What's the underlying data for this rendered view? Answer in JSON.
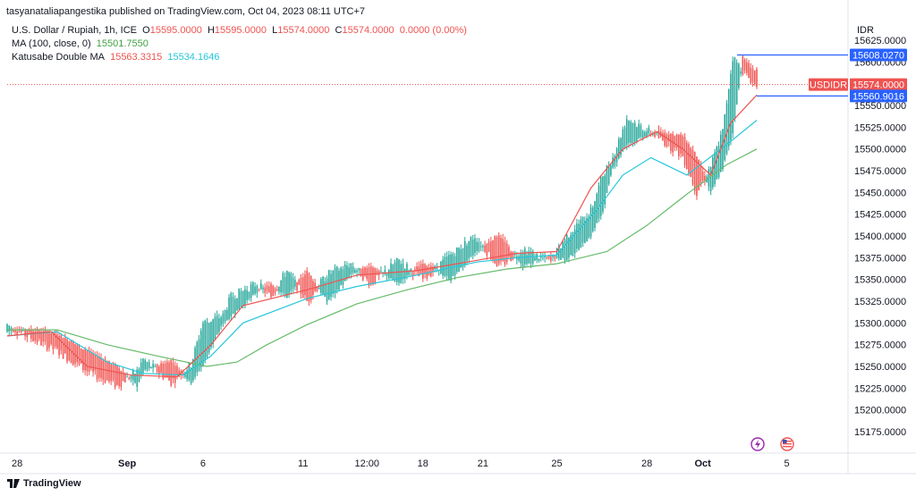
{
  "header": {
    "publisher": "tasyanataliapangestika published on TradingView.com, Oct 04, 2023 08:11 UTC+7"
  },
  "legend": {
    "symbol": "U.S. Dollar / Rupiah, 1h, ICE",
    "ohlc": [
      {
        "label": "O",
        "value": "15595.0000"
      },
      {
        "label": "H",
        "value": "15595.0000"
      },
      {
        "label": "L",
        "value": "15574.0000"
      },
      {
        "label": "C",
        "value": "15574.0000"
      }
    ],
    "change": "0.0000 (0.00%)",
    "ma_label": "MA (100, close, 0)",
    "ma_value": "15501.7550",
    "dma_label": "Katusabe Double MA",
    "dma_value1": "15563.3315",
    "dma_value2": "15534.1646"
  },
  "currency": "IDR",
  "branding": "TradingView",
  "price_labels": {
    "top": "15608.0270",
    "symbol": "USDIDR",
    "current": "15574.0000",
    "bottom": "15560.9016"
  },
  "colors": {
    "up": "#26a69a",
    "down": "#ef5350",
    "ma": "#66bb6a",
    "dma_red": "#ef5350",
    "dma_teal": "#26c6da",
    "blue_label": "#2962ff"
  },
  "chart_data": {
    "type": "candlestick",
    "ylim": [
      15150,
      15630
    ],
    "y_ticks": [
      15625,
      15600,
      15575,
      15550,
      15525,
      15500,
      15475,
      15450,
      15425,
      15400,
      15375,
      15350,
      15325,
      15300,
      15275,
      15250,
      15225,
      15200,
      15175
    ],
    "x_ticks": [
      "28",
      "Sep",
      "6",
      "11",
      "12:00",
      "18",
      "21",
      "25",
      "28",
      "Oct",
      "5"
    ],
    "x_ticks_idx": [
      5,
      60,
      98,
      148,
      180,
      208,
      238,
      275,
      320,
      348,
      390
    ],
    "series": [
      {
        "name": "MA (100, close, 0)",
        "values": [
          [
            0,
            15292
          ],
          [
            25,
            15292
          ],
          [
            50,
            15275
          ],
          [
            75,
            15262
          ],
          [
            100,
            15250
          ],
          [
            115,
            15255
          ],
          [
            130,
            15275
          ],
          [
            150,
            15298
          ],
          [
            175,
            15322
          ],
          [
            200,
            15338
          ],
          [
            225,
            15352
          ],
          [
            250,
            15362
          ],
          [
            275,
            15368
          ],
          [
            300,
            15382
          ],
          [
            320,
            15412
          ],
          [
            340,
            15448
          ],
          [
            360,
            15482
          ],
          [
            375,
            15500
          ]
        ]
      },
      {
        "name": "Katusabe Double MA",
        "values": [
          [
            0,
            15285
          ],
          [
            25,
            15290
          ],
          [
            50,
            15255
          ],
          [
            68,
            15242
          ],
          [
            88,
            15240
          ],
          [
            102,
            15262
          ],
          [
            118,
            15300
          ],
          [
            150,
            15328
          ],
          [
            175,
            15342
          ],
          [
            205,
            15355
          ],
          [
            235,
            15370
          ],
          [
            255,
            15375
          ],
          [
            275,
            15378
          ],
          [
            295,
            15430
          ],
          [
            308,
            15470
          ],
          [
            322,
            15490
          ],
          [
            340,
            15470
          ],
          [
            360,
            15505
          ],
          [
            375,
            15533
          ]
        ]
      },
      {
        "name": "Katusabe Double MA (red)",
        "values": [
          [
            0,
            15285
          ],
          [
            22,
            15290
          ],
          [
            40,
            15250
          ],
          [
            62,
            15240
          ],
          [
            85,
            15238
          ],
          [
            102,
            15275
          ],
          [
            118,
            15320
          ],
          [
            150,
            15338
          ],
          [
            175,
            15355
          ],
          [
            205,
            15360
          ],
          [
            235,
            15372
          ],
          [
            255,
            15380
          ],
          [
            275,
            15382
          ],
          [
            292,
            15455
          ],
          [
            308,
            15500
          ],
          [
            325,
            15520
          ],
          [
            338,
            15500
          ],
          [
            352,
            15470
          ],
          [
            362,
            15530
          ],
          [
            375,
            15562
          ]
        ]
      }
    ],
    "candles_control": [
      [
        0,
        15290,
        15298
      ],
      [
        10,
        15293,
        15285
      ],
      [
        25,
        15288,
        15268
      ],
      [
        40,
        15268,
        15245
      ],
      [
        55,
        15250,
        15228
      ],
      [
        65,
        15228,
        15244
      ],
      [
        68,
        15244,
        15258
      ],
      [
        82,
        15257,
        15232
      ],
      [
        92,
        15232,
        15252
      ],
      [
        98,
        15252,
        15300
      ],
      [
        108,
        15300,
        15308
      ],
      [
        112,
        15308,
        15330
      ],
      [
        125,
        15335,
        15345
      ],
      [
        132,
        15345,
        15330
      ],
      [
        140,
        15330,
        15360
      ],
      [
        150,
        15360,
        15325
      ],
      [
        160,
        15325,
        15355
      ],
      [
        172,
        15355,
        15368
      ],
      [
        182,
        15366,
        15345
      ],
      [
        196,
        15345,
        15372
      ],
      [
        208,
        15370,
        15350
      ],
      [
        222,
        15350,
        15378
      ],
      [
        234,
        15380,
        15400
      ],
      [
        246,
        15402,
        15365
      ],
      [
        258,
        15365,
        15385
      ],
      [
        272,
        15378,
        15370
      ],
      [
        280,
        15372,
        15400
      ],
      [
        292,
        15400,
        15428
      ],
      [
        298,
        15428,
        15470
      ],
      [
        303,
        15478,
        15490
      ],
      [
        310,
        15505,
        15535
      ],
      [
        325,
        15520,
        15515
      ],
      [
        338,
        15515,
        15492
      ],
      [
        345,
        15492,
        15450
      ],
      [
        352,
        15450,
        15480
      ],
      [
        358,
        15478,
        15520
      ],
      [
        363,
        15518,
        15605
      ],
      [
        368,
        15605,
        15590
      ],
      [
        374,
        15590,
        15574
      ]
    ]
  }
}
